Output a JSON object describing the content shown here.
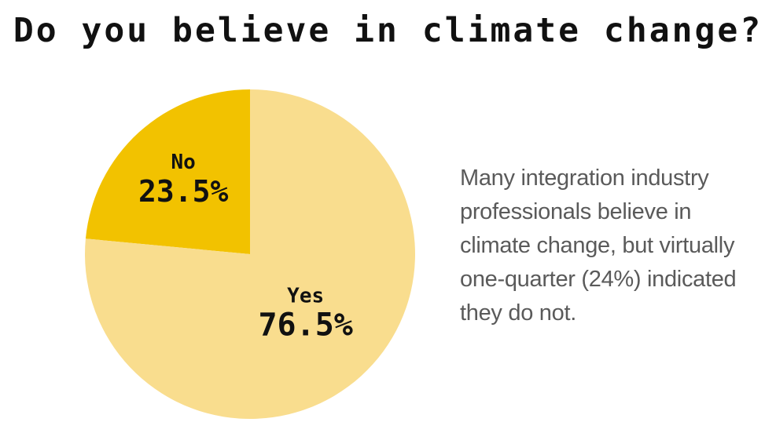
{
  "chart_data": {
    "type": "pie",
    "title": "Do you believe in climate change?",
    "slices": [
      {
        "label": "No",
        "value": 23.5,
        "display": "23.5%",
        "color": "#f2c200"
      },
      {
        "label": "Yes",
        "value": 76.5,
        "display": "76.5%",
        "color": "#f9dd8e"
      }
    ]
  },
  "caption": "Many integration industry professionals believe in climate change, but virtually one-quarter (24%) indicated they do not."
}
